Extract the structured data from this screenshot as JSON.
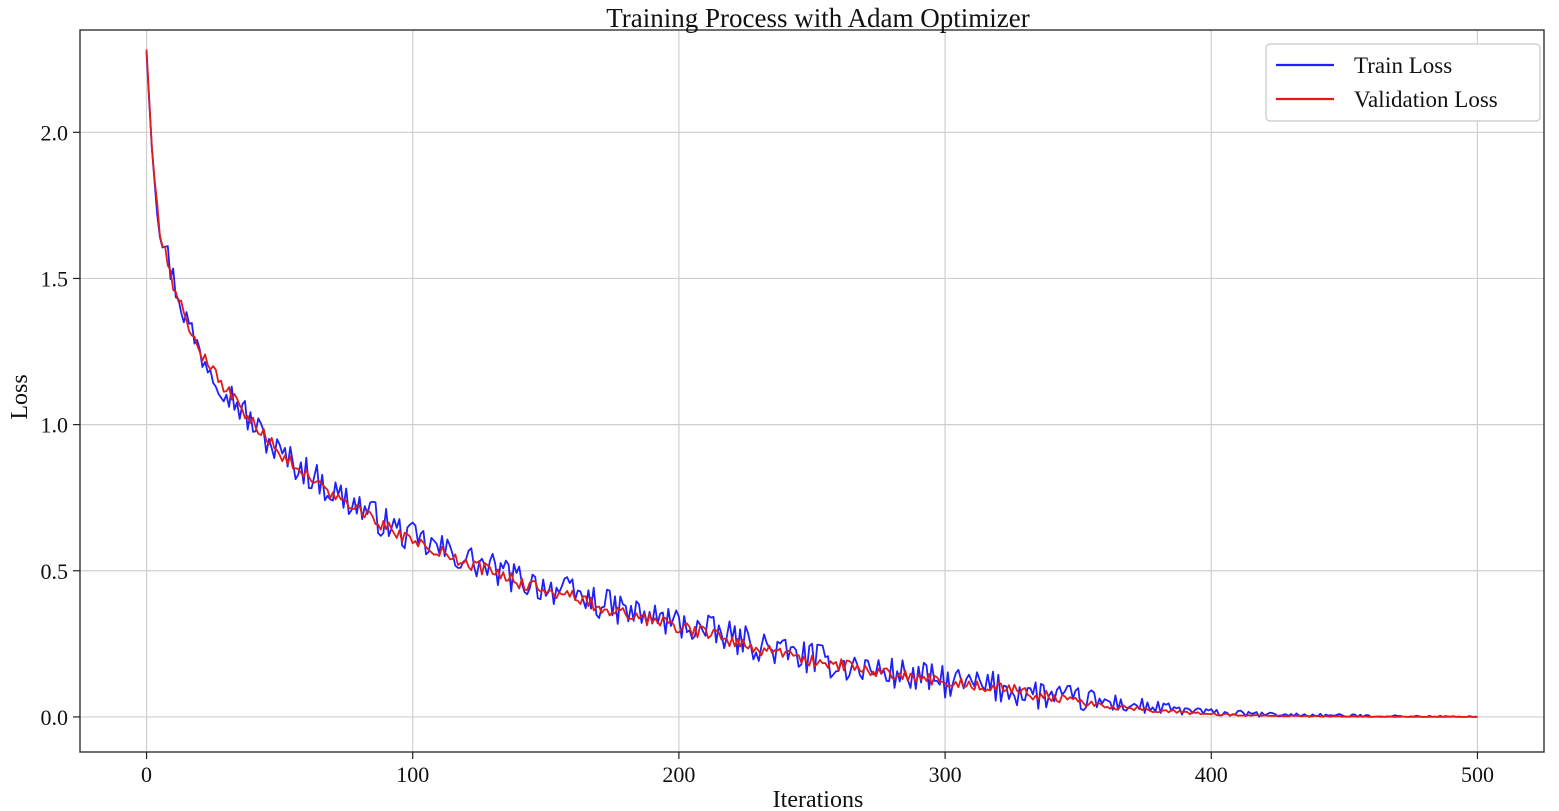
{
  "chart_data": {
    "type": "line",
    "title": "Training Process with Adam Optimizer",
    "xlabel": "Iterations",
    "ylabel": "Loss",
    "xlim": [
      -25,
      525
    ],
    "ylim": [
      -0.12,
      2.35
    ],
    "x_ticks": [
      0,
      100,
      200,
      300,
      400,
      500
    ],
    "y_ticks": [
      0.0,
      0.5,
      1.0,
      1.5,
      2.0
    ],
    "x_tick_labels": [
      "0",
      "100",
      "200",
      "300",
      "400",
      "500"
    ],
    "y_tick_labels": [
      "0.0",
      "0.5",
      "1.0",
      "1.5",
      "2.0"
    ],
    "grid": true,
    "legend_position": "top-right",
    "iterations": {
      "start": 0,
      "end": 500,
      "step": 1
    },
    "series": [
      {
        "name": "Train Loss",
        "color": "#1f1fff",
        "anchors": [
          [
            0,
            2.28
          ],
          [
            2,
            1.95
          ],
          [
            5,
            1.68
          ],
          [
            10,
            1.5
          ],
          [
            15,
            1.36
          ],
          [
            20,
            1.25
          ],
          [
            30,
            1.12
          ],
          [
            40,
            1.0
          ],
          [
            50,
            0.9
          ],
          [
            60,
            0.84
          ],
          [
            70,
            0.77
          ],
          [
            80,
            0.72
          ],
          [
            90,
            0.66
          ],
          [
            100,
            0.61
          ],
          [
            120,
            0.54
          ],
          [
            140,
            0.47
          ],
          [
            160,
            0.42
          ],
          [
            180,
            0.36
          ],
          [
            200,
            0.32
          ],
          [
            220,
            0.27
          ],
          [
            240,
            0.22
          ],
          [
            260,
            0.18
          ],
          [
            280,
            0.15
          ],
          [
            300,
            0.12
          ],
          [
            320,
            0.1
          ],
          [
            340,
            0.07
          ],
          [
            360,
            0.05
          ],
          [
            380,
            0.03
          ],
          [
            400,
            0.015
          ],
          [
            420,
            0.008
          ],
          [
            450,
            0.004
          ],
          [
            480,
            0.001
          ],
          [
            500,
            0.0
          ]
        ],
        "noise_amplitude": 0.055
      },
      {
        "name": "Validation Loss",
        "color": "#e01b1b",
        "anchors": [
          [
            0,
            2.28
          ],
          [
            2,
            1.95
          ],
          [
            5,
            1.66
          ],
          [
            10,
            1.48
          ],
          [
            15,
            1.36
          ],
          [
            20,
            1.25
          ],
          [
            30,
            1.12
          ],
          [
            40,
            1.01
          ],
          [
            50,
            0.9
          ],
          [
            60,
            0.83
          ],
          [
            70,
            0.76
          ],
          [
            80,
            0.71
          ],
          [
            90,
            0.65
          ],
          [
            100,
            0.6
          ],
          [
            120,
            0.53
          ],
          [
            140,
            0.46
          ],
          [
            160,
            0.41
          ],
          [
            180,
            0.35
          ],
          [
            200,
            0.31
          ],
          [
            220,
            0.26
          ],
          [
            240,
            0.21
          ],
          [
            260,
            0.18
          ],
          [
            280,
            0.15
          ],
          [
            300,
            0.12
          ],
          [
            320,
            0.1
          ],
          [
            340,
            0.07
          ],
          [
            360,
            0.04
          ],
          [
            380,
            0.02
          ],
          [
            400,
            0.01
          ],
          [
            420,
            0.004
          ],
          [
            450,
            0.001
          ],
          [
            480,
            0.0
          ],
          [
            500,
            0.0
          ]
        ],
        "noise_amplitude": 0.022
      }
    ]
  }
}
